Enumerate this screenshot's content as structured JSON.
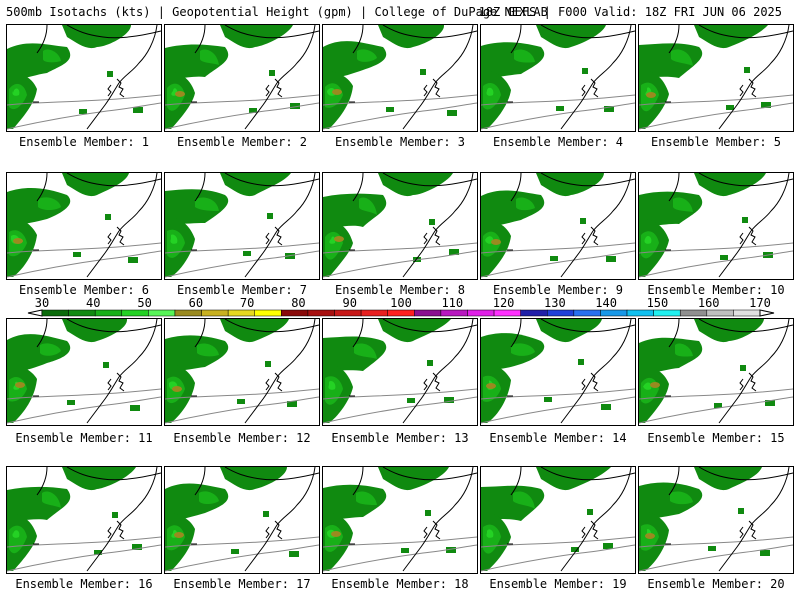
{
  "header": {
    "left": "500mb Isotachs (kts) | Geopotential Height (gpm) | College of DuPage NEXLAB",
    "right": "18Z GEFS | F000 Valid: 18Z FRI JUN 06 2025"
  },
  "panels": [
    {
      "label": "Ensemble Member: 1"
    },
    {
      "label": "Ensemble Member: 2"
    },
    {
      "label": "Ensemble Member: 3"
    },
    {
      "label": "Ensemble Member: 4"
    },
    {
      "label": "Ensemble Member: 5"
    },
    {
      "label": "Ensemble Member: 6"
    },
    {
      "label": "Ensemble Member: 7"
    },
    {
      "label": "Ensemble Member: 8"
    },
    {
      "label": "Ensemble Member: 9"
    },
    {
      "label": "Ensemble Member: 10"
    },
    {
      "label": "Ensemble Member: 11"
    },
    {
      "label": "Ensemble Member: 12"
    },
    {
      "label": "Ensemble Member: 13"
    },
    {
      "label": "Ensemble Member: 14"
    },
    {
      "label": "Ensemble Member: 15"
    },
    {
      "label": "Ensemble Member: 16"
    },
    {
      "label": "Ensemble Member: 17"
    },
    {
      "label": "Ensemble Member: 18"
    },
    {
      "label": "Ensemble Member: 19"
    },
    {
      "label": "Ensemble Member: 20"
    }
  ],
  "colorbar": {
    "labels": [
      "30",
      "40",
      "50",
      "60",
      "70",
      "80",
      "90",
      "100",
      "110",
      "120",
      "130",
      "140",
      "150",
      "160",
      "170"
    ],
    "colors": [
      "#0a6b0a",
      "#108a10",
      "#18b018",
      "#24d224",
      "#58f558",
      "#9a8a20",
      "#c8b020",
      "#e6d820",
      "#ffff00",
      "#8a0a0a",
      "#a81010",
      "#c81818",
      "#e82020",
      "#ff2020",
      "#8a1090",
      "#b818c0",
      "#e020e8",
      "#ff30ff",
      "#2020a8",
      "#2040d8",
      "#2870f0",
      "#1898e8",
      "#10c0f0",
      "#20f0f0",
      "#909090",
      "#c0c0c0",
      "#e0e0e0"
    ]
  }
}
